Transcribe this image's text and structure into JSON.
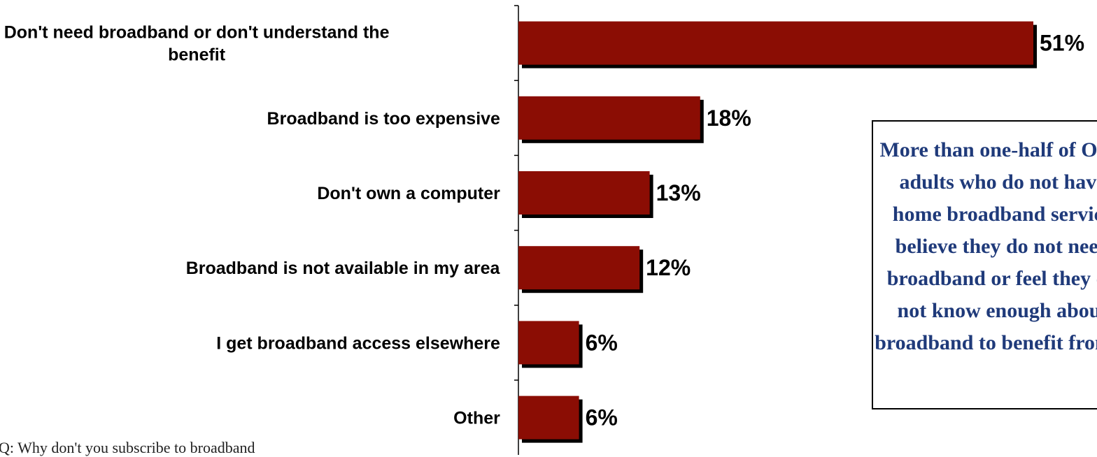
{
  "chart_data": {
    "type": "bar",
    "orientation": "horizontal",
    "categories": [
      [
        "Don't need broadband or don't understand the",
        "benefit"
      ],
      [
        "Broadband is too expensive"
      ],
      [
        "Don't own a computer"
      ],
      [
        "Broadband is not available in my area"
      ],
      [
        "I get broadband access elsewhere"
      ],
      [
        "Other"
      ]
    ],
    "values": [
      51,
      18,
      13,
      12,
      6,
      6
    ],
    "value_labels": [
      "51%",
      "18%",
      "13%",
      "12%",
      "6%",
      "6%"
    ],
    "xlim": [
      0,
      51
    ],
    "grid": false,
    "legend": "none",
    "bar_color": "#8b0d04",
    "shadow_color": "#000000"
  },
  "callout": {
    "text": "More than one-half of Ohio adults who do not have home broadband service believe they do not need broadband or feel they do not know enough about broadband to benefit from it",
    "color": "#1f3a7a"
  },
  "footnote": "Q: Why don't you subscribe to broadband"
}
